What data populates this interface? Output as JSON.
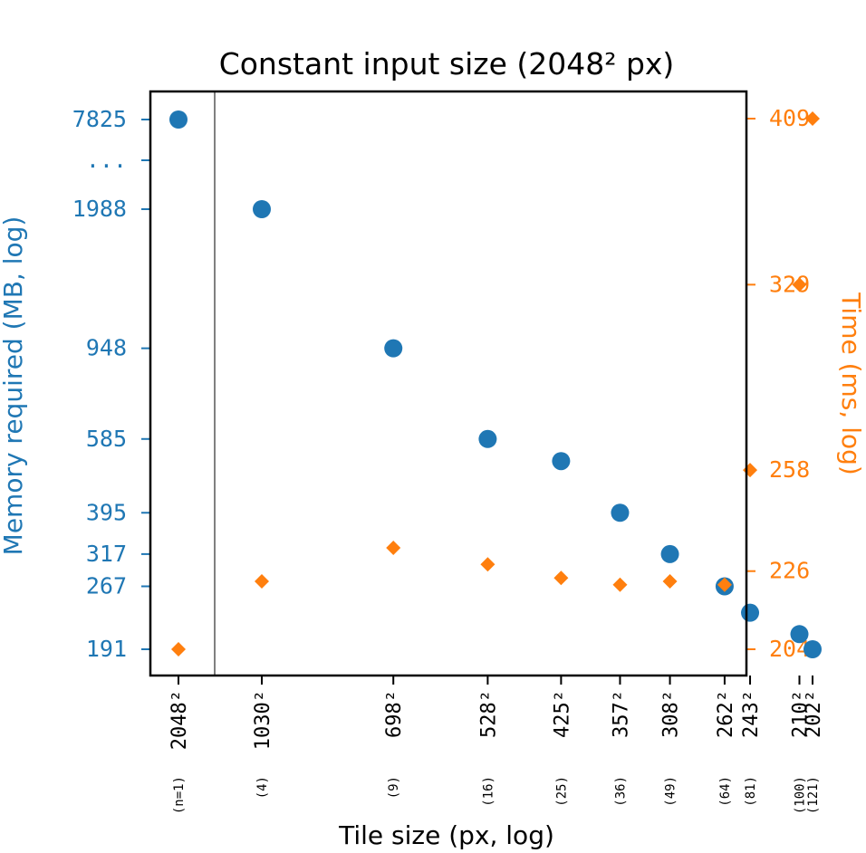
{
  "chart_data": {
    "type": "scatter",
    "title": "Constant input size (2048² px)",
    "xlabel": "Tile size (px, log)",
    "ylabel_left": "Memory required (MB, log)",
    "ylabel_right": "Time (ms, log)",
    "x_scale": "log",
    "y_scale": "log",
    "grid": false,
    "colors": {
      "memory": "#1f77b4",
      "time": "#ff7f0e",
      "separator": "#808080"
    },
    "x_ticks": [
      "2048²",
      "1030²",
      "698²",
      "528²",
      "425²",
      "357²",
      "308²",
      "262²",
      "243²",
      "210²",
      "202²"
    ],
    "n_labels": [
      "(n=1)",
      "(4)",
      "(9)",
      "(16)",
      "(25)",
      "(36)",
      "(49)",
      "(64)",
      "(81)",
      "(100)",
      "(121)"
    ],
    "left_ticks": [
      "7825",
      "...",
      "1988",
      "948",
      "585",
      "395",
      "317",
      "267",
      "191"
    ],
    "right_ticks": [
      "409",
      "329",
      "258",
      "226",
      "204"
    ],
    "x": [
      2048,
      1030,
      698,
      528,
      425,
      357,
      308,
      262,
      243,
      210,
      202
    ],
    "series": [
      {
        "axis": "left",
        "marker": "circle",
        "values": [
          7825,
          1988,
          948,
          585,
          520,
          395,
          317,
          267,
          232,
          207,
          191
        ]
      },
      {
        "axis": "right",
        "marker": "diamond",
        "values": [
          204,
          223,
          233,
          228,
          224,
          222,
          223,
          222,
          258,
          329,
          409
        ]
      }
    ]
  }
}
